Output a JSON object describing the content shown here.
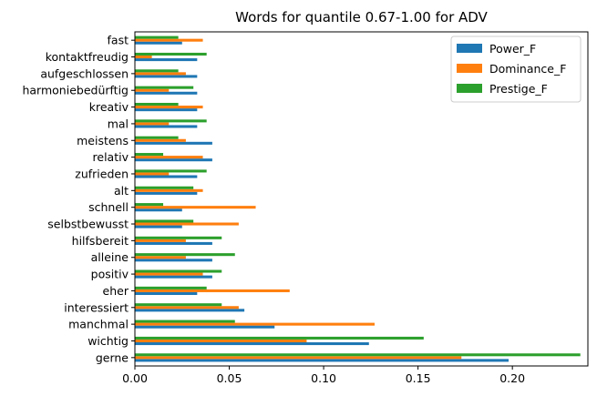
{
  "chart_data": {
    "type": "bar",
    "orientation": "horizontal",
    "title": "Words for quantile 0.67-1.00 for ADV",
    "xlabel": "",
    "ylabel": "",
    "xlim": [
      0,
      0.24
    ],
    "xticks": [
      "0.00",
      "0.05",
      "0.10",
      "0.15",
      "0.20"
    ],
    "grid": false,
    "legend_position": "top-right",
    "categories": [
      "gerne",
      "wichtig",
      "manchmal",
      "interessiert",
      "eher",
      "positiv",
      "alleine",
      "hilfsbereit",
      "selbstbewusst",
      "schnell",
      "alt",
      "zufrieden",
      "relativ",
      "meistens",
      "mal",
      "kreativ",
      "harmoniebedürftig",
      "aufgeschlossen",
      "kontaktfreudig",
      "fast"
    ],
    "series": [
      {
        "name": "Power_F",
        "color": "#1f77b4",
        "values": [
          0.198,
          0.124,
          0.074,
          0.058,
          0.033,
          0.041,
          0.041,
          0.041,
          0.025,
          0.025,
          0.033,
          0.033,
          0.041,
          0.041,
          0.033,
          0.033,
          0.033,
          0.033,
          0.033,
          0.025
        ]
      },
      {
        "name": "Dominance_F",
        "color": "#ff7f0e",
        "values": [
          0.173,
          0.091,
          0.127,
          0.055,
          0.082,
          0.036,
          0.027,
          0.027,
          0.055,
          0.064,
          0.036,
          0.018,
          0.036,
          0.027,
          0.018,
          0.036,
          0.018,
          0.027,
          0.009,
          0.036
        ]
      },
      {
        "name": "Prestige_F",
        "color": "#2ca02c",
        "values": [
          0.236,
          0.153,
          0.053,
          0.046,
          0.038,
          0.046,
          0.053,
          0.046,
          0.031,
          0.015,
          0.031,
          0.038,
          0.015,
          0.023,
          0.038,
          0.023,
          0.031,
          0.023,
          0.038,
          0.023
        ]
      }
    ]
  }
}
